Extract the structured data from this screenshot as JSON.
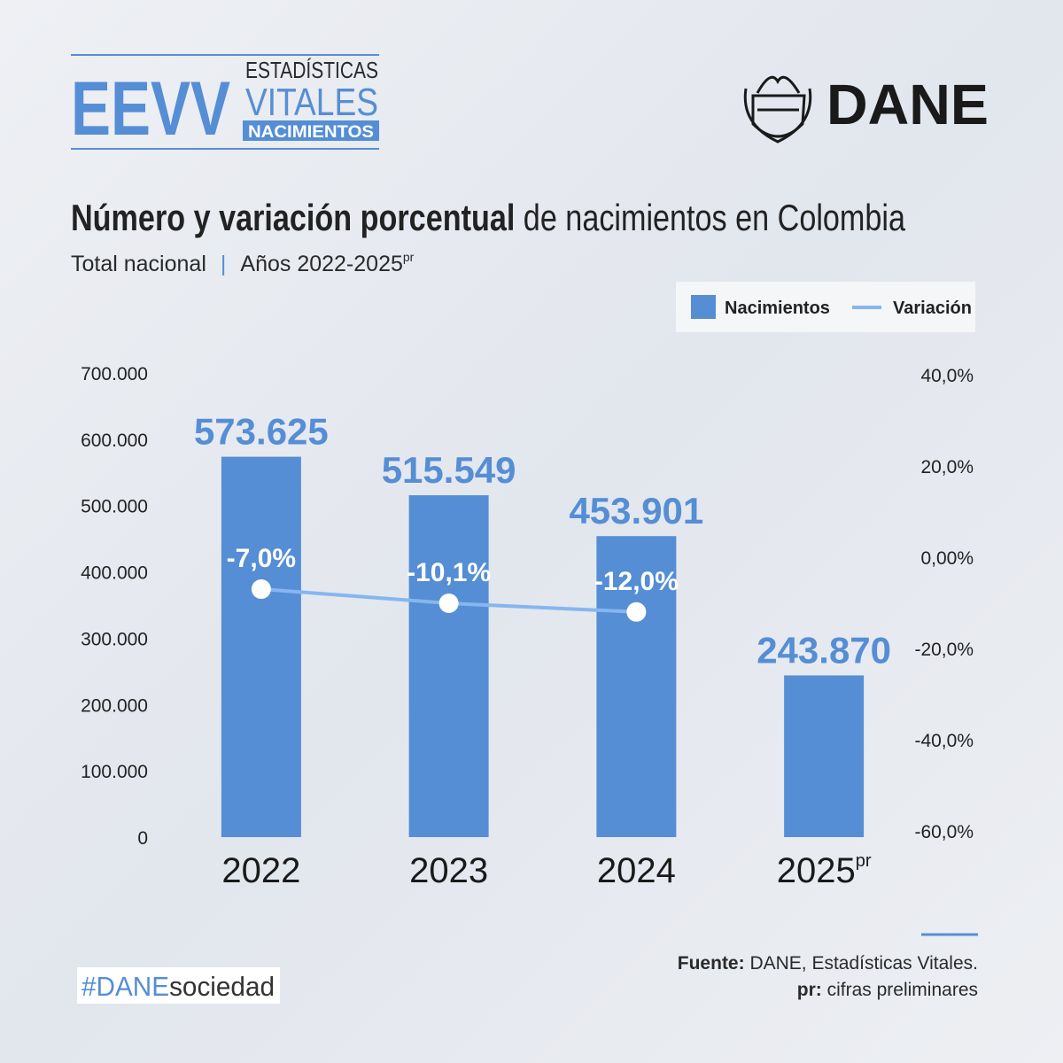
{
  "header": {
    "logo_short": "EEVV",
    "logo_line1": "ESTADÍSTICAS",
    "logo_line2": "VITALES",
    "logo_tag": "NACIMIENTOS",
    "brand": "DANE"
  },
  "chart_data": {
    "type": "bar",
    "title_bold": "Número y variación porcentual",
    "title_rest": " de nacimientos en Colombia",
    "subtitle_left": "Total nacional",
    "subtitle_separator": "|",
    "subtitle_right": "Años 2022-2025",
    "subtitle_sup": "pr",
    "categories": [
      "2022",
      "2023",
      "2024",
      "2025"
    ],
    "preliminary": [
      false,
      false,
      false,
      true
    ],
    "preliminary_mark": "pr",
    "series": [
      {
        "name": "Nacimientos",
        "color": "#558ed5",
        "values": [
          573625,
          515549,
          453901,
          243870
        ],
        "value_labels": [
          "573.625",
          "515.549",
          "453.901",
          "243.870"
        ]
      },
      {
        "name": "Variación",
        "color": "#86b6ef",
        "axis": "y2",
        "type": "line",
        "values": [
          -7.0,
          -10.1,
          -12.0,
          null
        ],
        "value_labels": [
          "-7,0%",
          "-10,1%",
          "-12,0%",
          null
        ]
      }
    ],
    "ylim": [
      0,
      700000
    ],
    "yticks": [
      0,
      {
        "value": 100000,
        "label": "100.000"
      },
      {
        "value": 200000,
        "label": "200.000"
      },
      {
        "value": 300000,
        "label": "300.000"
      },
      {
        "value": 400000,
        "label": "400.000"
      },
      {
        "value": 500000,
        "label": "500.000"
      },
      {
        "value": 600000,
        "label": "600.000"
      },
      {
        "value": 700000,
        "label": "700.000"
      }
    ],
    "y2lim": [
      -60,
      40
    ],
    "y2ticks": [
      {
        "value": -60,
        "label": "-60,0%"
      },
      {
        "value": -40,
        "label": "-40,0%"
      },
      {
        "value": -20,
        "label": "-20,0%"
      },
      {
        "value": 0,
        "label": "0,00%"
      },
      {
        "value": 20,
        "label": "20,0%"
      },
      {
        "value": 40,
        "label": "40,0%"
      }
    ],
    "grid": false,
    "legend": "top-right"
  },
  "footer": {
    "hashtag_bold": "#DANE",
    "hashtag_rest": "sociedad",
    "source_label": "Fuente:",
    "source_text": " DANE, Estadísticas Vitales.",
    "note_label": "pr:",
    "note_text": " cifras preliminares"
  }
}
